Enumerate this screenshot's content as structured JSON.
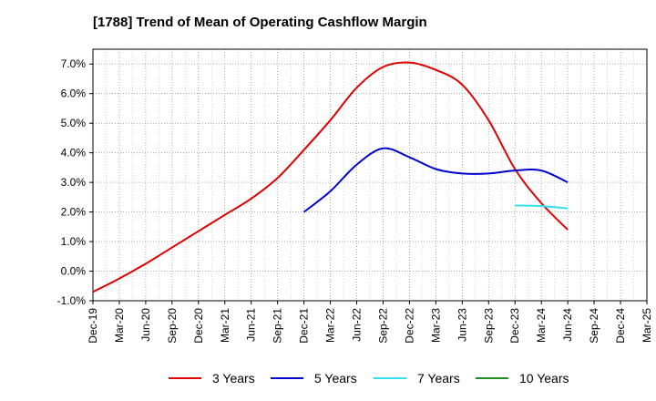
{
  "chart_data": {
    "type": "line",
    "title": "[1788]  Trend of Mean of Operating Cashflow Margin",
    "xlabel": "",
    "ylabel": "",
    "categories": [
      "Dec-19",
      "Mar-20",
      "Jun-20",
      "Sep-20",
      "Dec-20",
      "Mar-21",
      "Jun-21",
      "Sep-21",
      "Dec-21",
      "Mar-22",
      "Jun-22",
      "Sep-22",
      "Dec-22",
      "Mar-23",
      "Jun-23",
      "Sep-23",
      "Dec-23",
      "Mar-24",
      "Jun-24",
      "Sep-24",
      "Dec-24",
      "Mar-25"
    ],
    "ylim": [
      -1.0,
      7.5
    ],
    "yticks": [
      -1.0,
      0.0,
      1.0,
      2.0,
      3.0,
      4.0,
      5.0,
      6.0,
      7.0
    ],
    "ytick_labels": [
      "-1.0%",
      "0.0%",
      "1.0%",
      "2.0%",
      "3.0%",
      "4.0%",
      "5.0%",
      "6.0%",
      "7.0%"
    ],
    "grid": true,
    "legend_position": "bottom",
    "series": [
      {
        "name": "3 Years",
        "color": "#e00000",
        "values": [
          -0.7,
          -0.25,
          0.25,
          0.8,
          1.35,
          1.9,
          2.45,
          3.15,
          4.1,
          5.1,
          6.2,
          6.9,
          7.05,
          6.8,
          6.3,
          5.1,
          3.45,
          2.3,
          1.4,
          null,
          null,
          null
        ]
      },
      {
        "name": "5 Years",
        "color": "#0000cc",
        "values": [
          null,
          null,
          null,
          null,
          null,
          null,
          null,
          null,
          2.0,
          2.7,
          3.6,
          4.15,
          3.85,
          3.45,
          3.3,
          3.3,
          3.4,
          3.4,
          3.0,
          null,
          null,
          null
        ]
      },
      {
        "name": "7 Years",
        "color": "#33e0f0",
        "values": [
          null,
          null,
          null,
          null,
          null,
          null,
          null,
          null,
          null,
          null,
          null,
          null,
          null,
          null,
          null,
          null,
          2.22,
          2.2,
          2.12,
          null,
          null,
          null
        ]
      },
      {
        "name": "10 Years",
        "color": "#228b22",
        "values": [
          null,
          null,
          null,
          null,
          null,
          null,
          null,
          null,
          null,
          null,
          null,
          null,
          null,
          null,
          null,
          null,
          null,
          null,
          null,
          null,
          null,
          null
        ]
      }
    ]
  }
}
